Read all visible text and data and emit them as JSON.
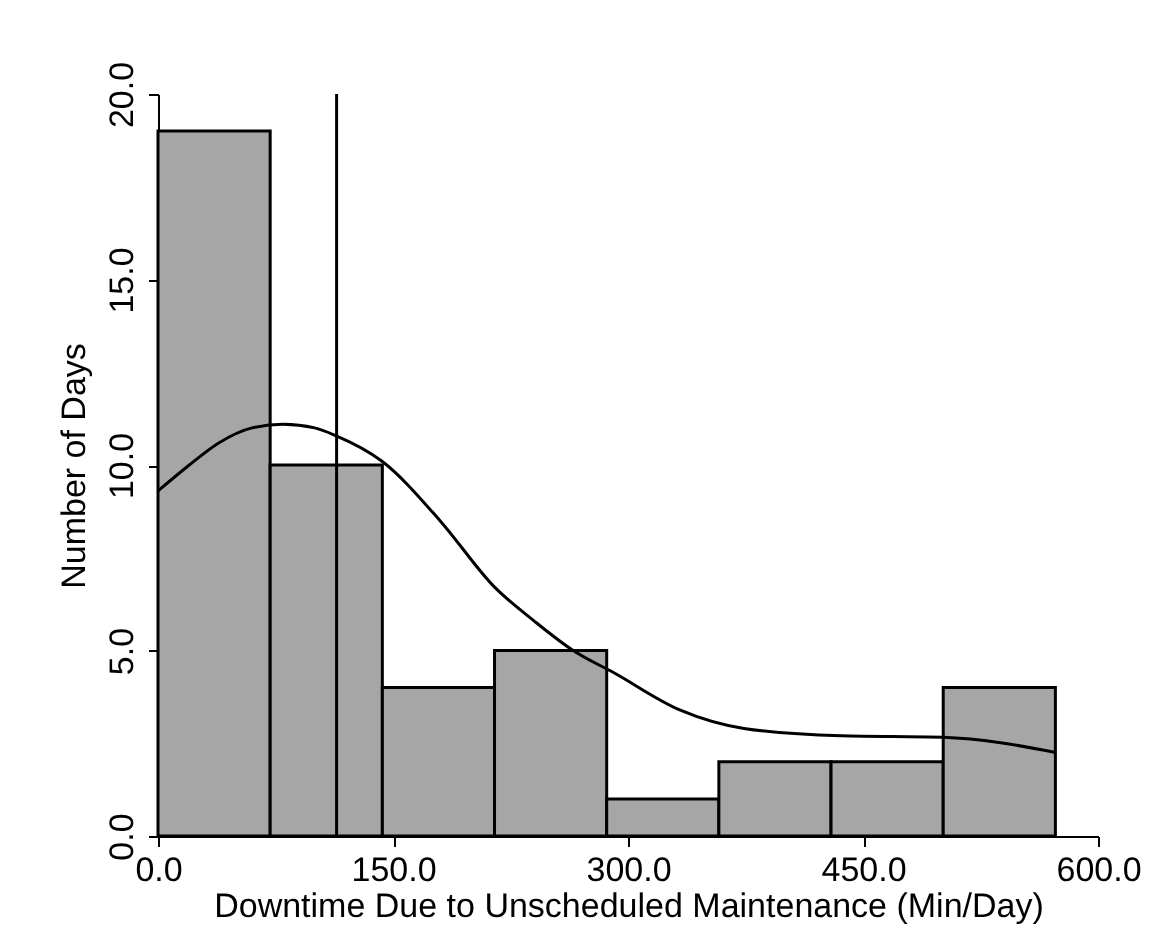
{
  "chart_data": {
    "type": "histogram",
    "xlabel": "Downtime Due to Unscheduled Maintenance (Min/Day)",
    "ylabel": "Number of Days",
    "bins": [
      0,
      71.6,
      143.2,
      214.8,
      286.4,
      358,
      429.6,
      501.2,
      572.8
    ],
    "values": [
      19,
      10,
      4,
      5,
      1,
      2,
      2,
      4
    ],
    "color": "#a6a6a6",
    "series": [
      {
        "type": "line",
        "color": "#000000",
        "x": [
          0,
          20,
          39,
          60,
          80,
          100,
          113,
          143,
          180,
          215,
          240,
          265,
          291,
          333,
          374,
          436,
          501,
          540,
          573
        ],
        "values": [
          9.3,
          10.0,
          10.6,
          11.0,
          11.1,
          11.0,
          10.8,
          10.1,
          8.5,
          6.7,
          5.8,
          5.0,
          4.4,
          3.4,
          2.9,
          2.7,
          2.66,
          2.5,
          2.25
        ]
      }
    ],
    "ref_lines": [
      {
        "axis": "x",
        "value": 114,
        "color": "#000000"
      }
    ],
    "xlim": [
      0,
      600
    ],
    "ylim": [
      0,
      20
    ],
    "xticks": [
      {
        "value": 0,
        "label": "0.0"
      },
      {
        "value": 150,
        "label": "150.0"
      },
      {
        "value": 300,
        "label": "300.0"
      },
      {
        "value": 450,
        "label": "450.0"
      },
      {
        "value": 600,
        "label": "600.0"
      }
    ],
    "yticks": [
      {
        "value": 0,
        "label": "0.0"
      },
      {
        "value": 5,
        "label": "5.0"
      },
      {
        "value": 10,
        "label": "10.0"
      },
      {
        "value": 15,
        "label": "15.0"
      },
      {
        "value": 20,
        "label": "20.0"
      }
    ]
  }
}
